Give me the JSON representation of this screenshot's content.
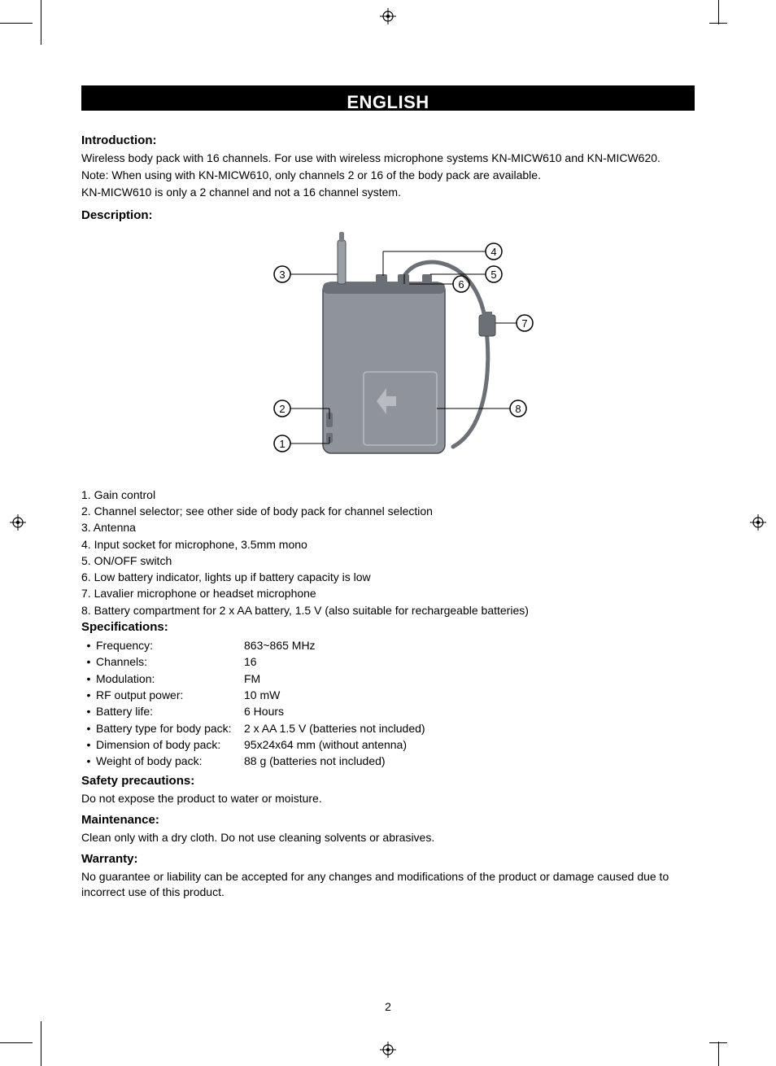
{
  "page": {
    "language_header": "ENGLISH",
    "page_number": "2"
  },
  "intro": {
    "heading": "Introduction:",
    "p1": "Wireless body pack with 16 channels. For use with wireless microphone systems KN-MICW610 and KN-MICW620.",
    "p2": "Note: When using with KN-MICW610, only channels 2 or 16 of the body pack are available.",
    "p3": "KN-MICW610 is only a 2 channel and not a 16 channel system."
  },
  "description": {
    "heading": "Description:",
    "callouts": {
      "1": "1. Gain control",
      "2": "2. Channel selector; see other side of body pack for channel selection",
      "3": "3. Antenna",
      "4": "4. Input socket for microphone, 3.5mm mono",
      "5": "5. ON/OFF switch",
      "6": "6. Low battery indicator, lights up if battery capacity is low",
      "7": "7. Lavalier microphone or headset microphone",
      "8": "8. Battery compartment for 2 x AA battery, 1.5 V (also suitable for rechargeable batteries)"
    }
  },
  "diagram": {
    "device_color": "#8f939a",
    "device_dark": "#6b6f76",
    "outline": "#4a4d52",
    "cable_color": "#6b6f76",
    "label_numbers": [
      "1",
      "2",
      "3",
      "4",
      "5",
      "6",
      "7",
      "8"
    ]
  },
  "specs": {
    "heading": "Specifications:",
    "rows": [
      {
        "label": "Frequency:",
        "value": "863~865 MHz"
      },
      {
        "label": "Channels:",
        "value": "16"
      },
      {
        "label": "Modulation:",
        "value": "FM"
      },
      {
        "label": "RF output power:",
        "value": "10 mW"
      },
      {
        "label": "Battery life:",
        "value": "6 Hours"
      },
      {
        "label": "Battery type for body pack:",
        "value": "2 x AA 1.5 V (batteries not included)"
      },
      {
        "label": "Dimension of body pack:",
        "value": "95x24x64 mm (without antenna)"
      },
      {
        "label": "Weight of body pack:",
        "value": "88 g (batteries not included)"
      }
    ]
  },
  "safety": {
    "heading": "Safety precautions:",
    "text": "Do not expose the product to water or moisture."
  },
  "maintenance": {
    "heading": "Maintenance:",
    "text": "Clean only with a dry cloth. Do not use cleaning solvents or abrasives."
  },
  "warranty": {
    "heading": "Warranty:",
    "text": "No guarantee or liability can be accepted for any changes and modifications of the product or damage caused due to incorrect use of this product."
  }
}
